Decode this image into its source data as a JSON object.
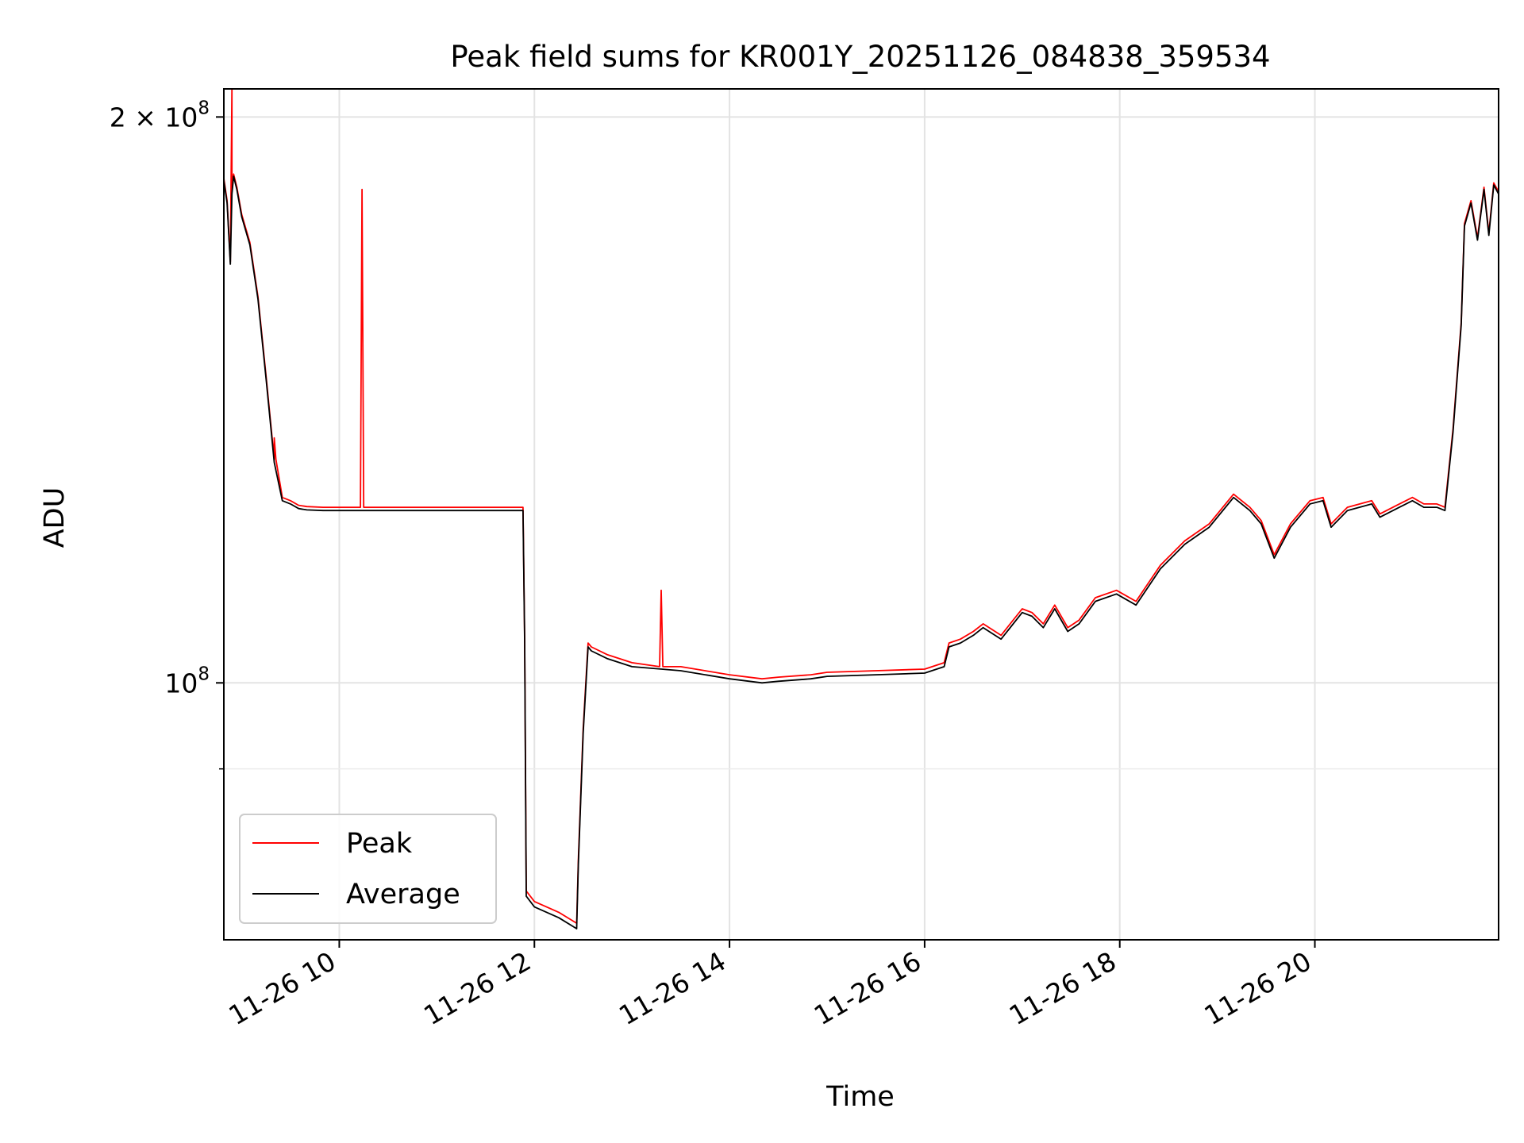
{
  "chart_data": {
    "type": "line",
    "title": "Peak field sums for KR001Y_20251126_084838_359534",
    "xlabel": "Time",
    "ylabel": "ADU",
    "y_scale": "log",
    "xlim": [
      "2025-11-26 08:49",
      "2025-11-26 21:53"
    ],
    "ylim": [
      73000000,
      207000000
    ],
    "x_ticks": [
      "11-26 10",
      "11-26 12",
      "11-26 14",
      "11-26 16",
      "11-26 18",
      "11-26 20"
    ],
    "x_tick_times": [
      "2025-11-26 10:00",
      "2025-11-26 12:00",
      "2025-11-26 14:00",
      "2025-11-26 16:00",
      "2025-11-26 18:00",
      "2025-11-26 20:00"
    ],
    "y_major_ticks": [
      {
        "value": 100000000,
        "base": "10",
        "exp": "8",
        "coef": ""
      },
      {
        "value": 200000000,
        "base": "10",
        "exp": "8",
        "coef": "2 × "
      }
    ],
    "y_minor_ticks": [
      90000000
    ],
    "grid": true,
    "legend": {
      "position": "lower-left",
      "entries": [
        "Peak",
        "Average"
      ]
    },
    "series": [
      {
        "name": "Average",
        "color": "#000000",
        "x": [
          "2025-11-26 08:49",
          "2025-11-26 08:51",
          "2025-11-26 08:53",
          "2025-11-26 08:54",
          "2025-11-26 08:55",
          "2025-11-26 08:57",
          "2025-11-26 09:00",
          "2025-11-26 09:05",
          "2025-11-26 09:10",
          "2025-11-26 09:15",
          "2025-11-26 09:20",
          "2025-11-26 09:25",
          "2025-11-26 09:30",
          "2025-11-26 09:35",
          "2025-11-26 09:40",
          "2025-11-26 09:50",
          "2025-11-26 10:00",
          "2025-11-26 10:30",
          "2025-11-26 11:00",
          "2025-11-26 11:30",
          "2025-11-26 11:53",
          "2025-11-26 11:54",
          "2025-11-26 11:55",
          "2025-11-26 12:00",
          "2025-11-26 12:15",
          "2025-11-26 12:26",
          "2025-11-26 12:27",
          "2025-11-26 12:30",
          "2025-11-26 12:33",
          "2025-11-26 12:35",
          "2025-11-26 12:45",
          "2025-11-26 13:00",
          "2025-11-26 13:30",
          "2025-11-26 14:00",
          "2025-11-26 14:20",
          "2025-11-26 14:30",
          "2025-11-26 14:50",
          "2025-11-26 15:00",
          "2025-11-26 15:30",
          "2025-11-26 16:00",
          "2025-11-26 16:12",
          "2025-11-26 16:15",
          "2025-11-26 16:22",
          "2025-11-26 16:30",
          "2025-11-26 16:36",
          "2025-11-26 16:47",
          "2025-11-26 17:00",
          "2025-11-26 17:06",
          "2025-11-26 17:13",
          "2025-11-26 17:20",
          "2025-11-26 17:28",
          "2025-11-26 17:35",
          "2025-11-26 17:45",
          "2025-11-26 17:58",
          "2025-11-26 18:10",
          "2025-11-26 18:25",
          "2025-11-26 18:40",
          "2025-11-26 18:55",
          "2025-11-26 19:10",
          "2025-11-26 19:20",
          "2025-11-26 19:27",
          "2025-11-26 19:35",
          "2025-11-26 19:45",
          "2025-11-26 19:57",
          "2025-11-26 20:05",
          "2025-11-26 20:10",
          "2025-11-26 20:20",
          "2025-11-26 20:35",
          "2025-11-26 20:40",
          "2025-11-26 20:52",
          "2025-11-26 21:00",
          "2025-11-26 21:07",
          "2025-11-26 21:15",
          "2025-11-26 21:20",
          "2025-11-26 21:25",
          "2025-11-26 21:30",
          "2025-11-26 21:32",
          "2025-11-26 21:36",
          "2025-11-26 21:40",
          "2025-11-26 21:44",
          "2025-11-26 21:47",
          "2025-11-26 21:50",
          "2025-11-26 21:53"
        ],
        "y": [
          185000000,
          180000000,
          167000000,
          182000000,
          186000000,
          183000000,
          177000000,
          171000000,
          160000000,
          145000000,
          131000000,
          125000000,
          124500000,
          123800000,
          123600000,
          123500000,
          123500000,
          123500000,
          123500000,
          123500000,
          123500000,
          105000000,
          77000000,
          76000000,
          75000000,
          74000000,
          80000000,
          94000000,
          104500000,
          104000000,
          103000000,
          102000000,
          101500000,
          100500000,
          100000000,
          100200000,
          100500000,
          100800000,
          101000000,
          101200000,
          102000000,
          104500000,
          105000000,
          106000000,
          107000000,
          105500000,
          109000000,
          108500000,
          107000000,
          109500000,
          106500000,
          107500000,
          110500000,
          111500000,
          110000000,
          115000000,
          118500000,
          121000000,
          125500000,
          123500000,
          121500000,
          116500000,
          121000000,
          124500000,
          125000000,
          121000000,
          123500000,
          124500000,
          122500000,
          124000000,
          125000000,
          124000000,
          124000000,
          123500000,
          136000000,
          155000000,
          175000000,
          180000000,
          172000000,
          183000000,
          173000000,
          184000000,
          182000000
        ]
      },
      {
        "name": "Peak",
        "color": "#ff0000",
        "x": [
          "2025-11-26 08:49",
          "2025-11-26 08:51",
          "2025-11-26 08:53",
          "2025-11-26 08:54",
          "2025-11-26 08:54",
          "2025-11-26 08:55",
          "2025-11-26 08:57",
          "2025-11-26 09:00",
          "2025-11-26 09:05",
          "2025-11-26 09:10",
          "2025-11-26 09:15",
          "2025-11-26 09:20",
          "2025-11-26 09:20",
          "2025-11-26 09:21",
          "2025-11-26 09:25",
          "2025-11-26 09:30",
          "2025-11-26 09:35",
          "2025-11-26 09:40",
          "2025-11-26 09:50",
          "2025-11-26 10:00",
          "2025-11-26 10:13",
          "2025-11-26 10:14",
          "2025-11-26 10:15",
          "2025-11-26 10:30",
          "2025-11-26 11:00",
          "2025-11-26 11:30",
          "2025-11-26 11:53",
          "2025-11-26 11:54",
          "2025-11-26 11:55",
          "2025-11-26 12:00",
          "2025-11-26 12:15",
          "2025-11-26 12:26",
          "2025-11-26 12:27",
          "2025-11-26 12:30",
          "2025-11-26 12:33",
          "2025-11-26 12:35",
          "2025-11-26 12:45",
          "2025-11-26 13:00",
          "2025-11-26 13:17",
          "2025-11-26 13:18",
          "2025-11-26 13:19",
          "2025-11-26 13:30",
          "2025-11-26 14:00",
          "2025-11-26 14:20",
          "2025-11-26 14:30",
          "2025-11-26 14:50",
          "2025-11-26 15:00",
          "2025-11-26 15:30",
          "2025-11-26 16:00",
          "2025-11-26 16:12",
          "2025-11-26 16:15",
          "2025-11-26 16:22",
          "2025-11-26 16:30",
          "2025-11-26 16:36",
          "2025-11-26 16:47",
          "2025-11-26 17:00",
          "2025-11-26 17:06",
          "2025-11-26 17:13",
          "2025-11-26 17:20",
          "2025-11-26 17:28",
          "2025-11-26 17:35",
          "2025-11-26 17:45",
          "2025-11-26 17:58",
          "2025-11-26 18:10",
          "2025-11-26 18:25",
          "2025-11-26 18:40",
          "2025-11-26 18:55",
          "2025-11-26 19:10",
          "2025-11-26 19:20",
          "2025-11-26 19:27",
          "2025-11-26 19:35",
          "2025-11-26 19:45",
          "2025-11-26 19:57",
          "2025-11-26 20:05",
          "2025-11-26 20:10",
          "2025-11-26 20:20",
          "2025-11-26 20:35",
          "2025-11-26 20:40",
          "2025-11-26 20:52",
          "2025-11-26 21:00",
          "2025-11-26 21:07",
          "2025-11-26 21:15",
          "2025-11-26 21:20",
          "2025-11-26 21:25",
          "2025-11-26 21:30",
          "2025-11-26 21:32",
          "2025-11-26 21:36",
          "2025-11-26 21:40",
          "2025-11-26 21:44",
          "2025-11-26 21:47",
          "2025-11-26 21:50",
          "2025-11-26 21:53"
        ],
        "y": [
          185500000,
          180500000,
          167500000,
          207000000,
          182500000,
          186500000,
          183500000,
          177500000,
          171500000,
          160500000,
          145500000,
          131500000,
          135000000,
          131500000,
          125500000,
          125000000,
          124300000,
          124100000,
          124000000,
          124000000,
          124000000,
          183000000,
          124000000,
          124000000,
          124000000,
          124000000,
          124000000,
          105500000,
          77500000,
          76500000,
          75500000,
          74500000,
          80500000,
          94500000,
          105000000,
          104500000,
          103500000,
          102500000,
          102000000,
          112000000,
          102000000,
          102000000,
          101000000,
          100500000,
          100700000,
          101000000,
          101300000,
          101500000,
          101700000,
          102500000,
          105000000,
          105500000,
          106500000,
          107500000,
          106000000,
          109500000,
          109000000,
          107500000,
          110000000,
          107000000,
          108000000,
          111000000,
          112000000,
          110500000,
          115500000,
          119000000,
          121500000,
          126000000,
          124000000,
          122000000,
          117000000,
          121500000,
          125000000,
          125500000,
          121500000,
          124000000,
          125000000,
          123000000,
          124500000,
          125500000,
          124500000,
          124500000,
          124000000,
          136500000,
          155500000,
          175500000,
          180500000,
          172500000,
          183500000,
          173500000,
          184500000,
          182500000
        ]
      }
    ]
  }
}
